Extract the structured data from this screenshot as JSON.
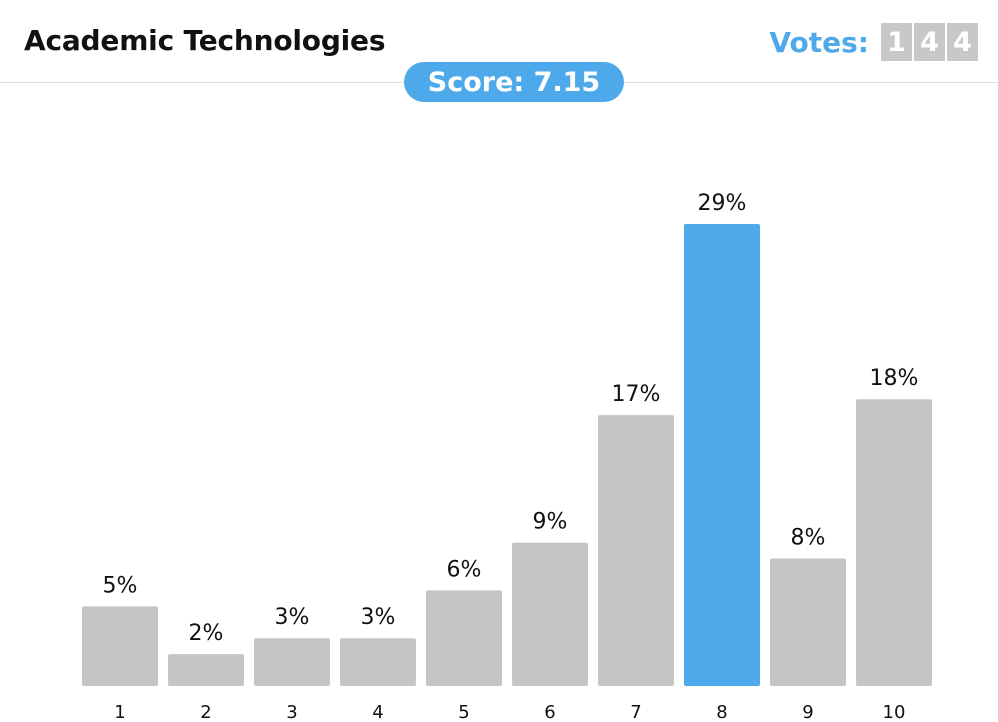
{
  "header": {
    "title": "Academic Technologies",
    "votes_label": "Votes:",
    "votes_digits": [
      "1",
      "4",
      "4"
    ],
    "score_label": "Score: 7.15"
  },
  "colors": {
    "bar": "#c5c5c5",
    "highlight": "#4faaec",
    "accent": "#4ea9ea"
  },
  "chart_data": {
    "type": "bar",
    "categories": [
      "1",
      "2",
      "3",
      "4",
      "5",
      "6",
      "7",
      "8",
      "9",
      "10"
    ],
    "values": [
      5,
      2,
      3,
      3,
      6,
      9,
      17,
      29,
      8,
      18
    ],
    "labels": [
      "5%",
      "2%",
      "3%",
      "3%",
      "6%",
      "9%",
      "17%",
      "29%",
      "8%",
      "18%"
    ],
    "highlight_category": "8",
    "ylim": [
      0,
      29
    ],
    "grid": false,
    "legend": "none"
  }
}
